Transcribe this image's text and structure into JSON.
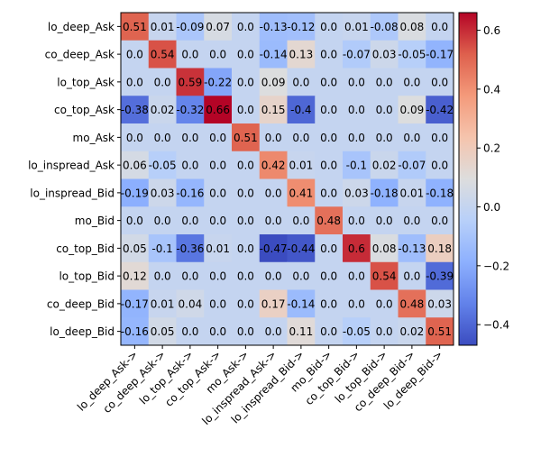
{
  "chart_data": {
    "type": "heatmap",
    "title": "",
    "xlabel": "",
    "ylabel": "",
    "rows": [
      "lo_deep_Ask",
      "co_deep_Ask",
      "lo_top_Ask",
      "co_top_Ask",
      "mo_Ask",
      "lo_inspread_Ask",
      "lo_inspread_Bid",
      "mo_Bid",
      "co_top_Bid",
      "lo_top_Bid",
      "co_deep_Bid",
      "lo_deep_Bid"
    ],
    "columns": [
      "lo_deep_Ask->",
      "co_deep_Ask->",
      "lo_top_Ask->",
      "co_top_Ask->",
      "mo_Ask->",
      "lo_inspread_Ask->",
      "lo_inspread_Bid->",
      "mo_Bid->",
      "co_top_Bid->",
      "lo_top_Bid->",
      "co_deep_Bid->",
      "lo_deep_Bid->"
    ],
    "values": [
      [
        0.51,
        0.01,
        -0.09,
        0.07,
        0.0,
        -0.13,
        -0.12,
        0.0,
        0.01,
        -0.08,
        0.08,
        0.0
      ],
      [
        0.0,
        0.54,
        0.0,
        0.0,
        0.0,
        -0.14,
        0.13,
        0.0,
        -0.07,
        0.03,
        -0.05,
        -0.17
      ],
      [
        0.0,
        0.0,
        0.59,
        -0.22,
        0.0,
        0.09,
        0.0,
        0.0,
        0.0,
        0.0,
        0.0,
        0.0
      ],
      [
        -0.38,
        0.02,
        -0.32,
        0.66,
        0.0,
        0.15,
        -0.4,
        0.0,
        0.0,
        0.0,
        0.09,
        -0.42
      ],
      [
        0.0,
        0.0,
        0.0,
        0.0,
        0.51,
        0.0,
        0.0,
        0.0,
        0.0,
        0.0,
        0.0,
        0.0
      ],
      [
        0.06,
        -0.05,
        0.0,
        0.0,
        0.0,
        0.42,
        0.01,
        0.0,
        -0.1,
        0.02,
        -0.07,
        0.0
      ],
      [
        -0.19,
        0.03,
        -0.16,
        0.0,
        0.0,
        0.0,
        0.41,
        0.0,
        0.03,
        -0.18,
        0.01,
        -0.18
      ],
      [
        0.0,
        0.0,
        0.0,
        0.0,
        0.0,
        0.0,
        0.0,
        0.48,
        0.0,
        0.0,
        0.0,
        0.0
      ],
      [
        0.05,
        -0.1,
        -0.36,
        0.01,
        0.0,
        -0.47,
        -0.44,
        0.0,
        0.6,
        0.08,
        -0.13,
        0.18
      ],
      [
        0.12,
        0.0,
        0.0,
        0.0,
        0.0,
        0.0,
        0.0,
        0.0,
        0.0,
        0.54,
        0.0,
        -0.39
      ],
      [
        -0.17,
        0.01,
        0.04,
        0.0,
        0.0,
        0.17,
        -0.14,
        0.0,
        0.0,
        0.0,
        0.48,
        0.03
      ],
      [
        -0.16,
        0.05,
        0.0,
        0.0,
        0.0,
        0.0,
        0.11,
        0.0,
        -0.05,
        0.0,
        0.02,
        0.51
      ]
    ],
    "colormap": "coolwarm",
    "vmin": -0.47,
    "vmax": 0.66,
    "colorbar": {
      "ticks": [
        -0.4,
        -0.2,
        0.0,
        0.2,
        0.4,
        0.6
      ],
      "tick_labels": [
        "−0.4",
        "−0.2",
        "0.0",
        "0.2",
        "0.4",
        "0.6"
      ]
    }
  }
}
